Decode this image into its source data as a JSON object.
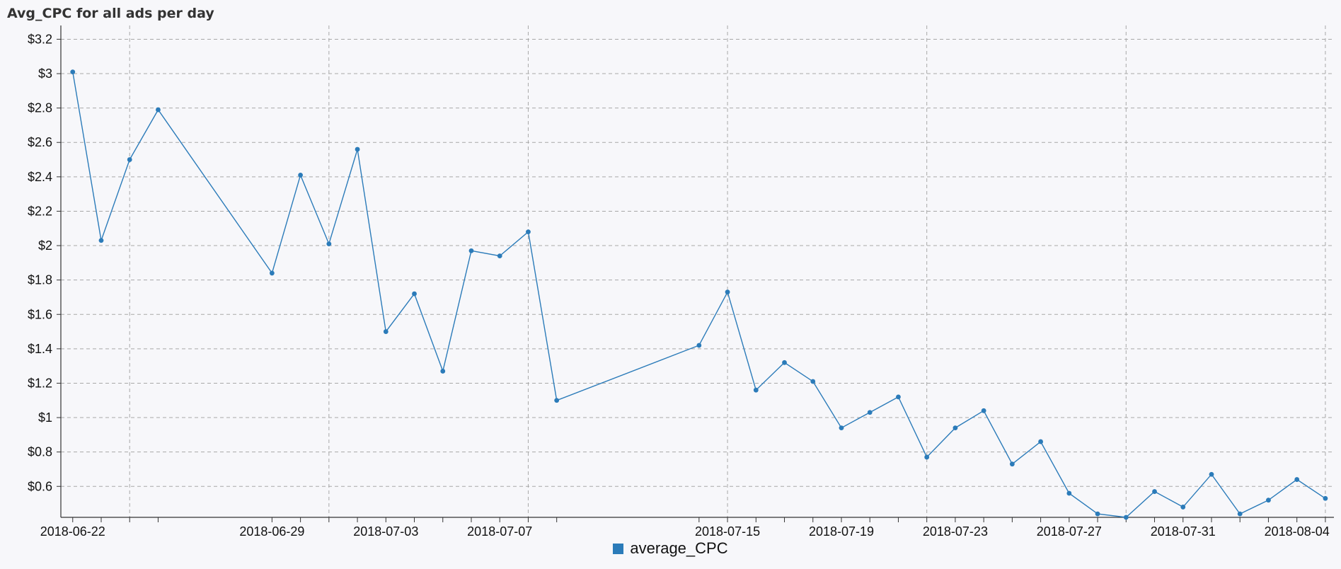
{
  "chart_data": {
    "type": "line",
    "title": "Avg_CPC for all ads per day",
    "xlabel": "",
    "ylabel": "",
    "x_domain": [
      "2018-06-21T14:00",
      "2018-08-05T09:00"
    ],
    "ylim": [
      0.42,
      3.28
    ],
    "y_ticks": [
      0.6,
      0.8,
      1,
      1.2,
      1.4,
      1.6,
      1.8,
      2,
      2.2,
      2.4,
      2.6,
      2.8,
      3,
      3.2
    ],
    "y_tick_labels": [
      "$0.6",
      "$0.8",
      "$1",
      "$1.2",
      "$1.4",
      "$1.6",
      "$1.8",
      "$2",
      "$2.2",
      "$2.4",
      "$2.6",
      "$2.8",
      "$3",
      "$3.2"
    ],
    "x_gridlines": [
      "2018-06-24",
      "2018-07-01",
      "2018-07-08",
      "2018-07-15",
      "2018-07-22",
      "2018-07-29",
      "2018-08-05"
    ],
    "x_tick_labels": [
      "2018-06-22",
      "2018-06-29",
      "2018-07-03",
      "2018-07-07",
      "2018-07-15",
      "2018-07-19",
      "2018-07-23",
      "2018-07-27",
      "2018-07-31",
      "2018-08-04"
    ],
    "legend_position": "bottom-center",
    "grid": true,
    "series": [
      {
        "name": "average_CPC",
        "color": "#2b7bb9",
        "points": [
          [
            "2018-06-22",
            3.01
          ],
          [
            "2018-06-23",
            2.03
          ],
          [
            "2018-06-24",
            2.5
          ],
          [
            "2018-06-25",
            2.79
          ],
          [
            "2018-06-29",
            1.84
          ],
          [
            "2018-06-30",
            2.41
          ],
          [
            "2018-07-01",
            2.01
          ],
          [
            "2018-07-02",
            2.56
          ],
          [
            "2018-07-03",
            1.5
          ],
          [
            "2018-07-04",
            1.72
          ],
          [
            "2018-07-05",
            1.27
          ],
          [
            "2018-07-06",
            1.97
          ],
          [
            "2018-07-07",
            1.94
          ],
          [
            "2018-07-08",
            2.08
          ],
          [
            "2018-07-09",
            1.1
          ],
          [
            "2018-07-14",
            1.42
          ],
          [
            "2018-07-15",
            1.73
          ],
          [
            "2018-07-16",
            1.16
          ],
          [
            "2018-07-17",
            1.32
          ],
          [
            "2018-07-18",
            1.21
          ],
          [
            "2018-07-19",
            0.94
          ],
          [
            "2018-07-20",
            1.03
          ],
          [
            "2018-07-21",
            1.12
          ],
          [
            "2018-07-22",
            0.77
          ],
          [
            "2018-07-23",
            0.94
          ],
          [
            "2018-07-24",
            1.04
          ],
          [
            "2018-07-25",
            0.73
          ],
          [
            "2018-07-26",
            0.86
          ],
          [
            "2018-07-27",
            0.56
          ],
          [
            "2018-07-28",
            0.44
          ],
          [
            "2018-07-29",
            0.42
          ],
          [
            "2018-07-30",
            0.57
          ],
          [
            "2018-07-31",
            0.48
          ],
          [
            "2018-08-01",
            0.67
          ],
          [
            "2018-08-02",
            0.44
          ],
          [
            "2018-08-03",
            0.52
          ],
          [
            "2018-08-04",
            0.64
          ],
          [
            "2018-08-05",
            0.53
          ]
        ]
      }
    ]
  }
}
